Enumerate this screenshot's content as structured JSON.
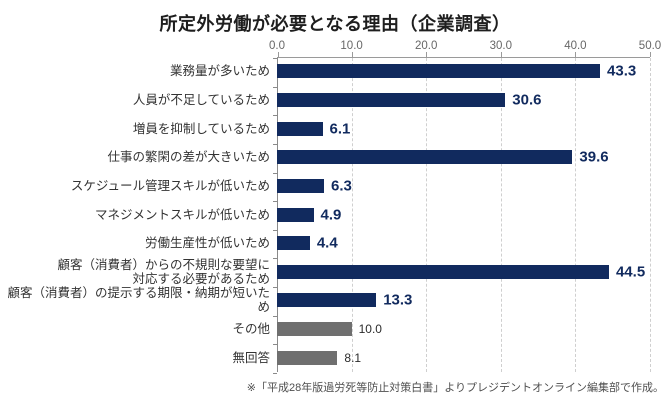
{
  "title": "所定外労働が必要となる理由（企業調査）",
  "source_note": "※「平成28年版過労死等防止対策白書」よりプレジデントオンライン編集部で作成。",
  "palette": {
    "bar_navy": "#112a5e",
    "bar_gray": "#6f6f6f",
    "axis_line": "#9a9a9a",
    "gridline": "#cfcfcf",
    "tick_label": "#676767",
    "category_label": "#333333",
    "value_label_navy": "#112a5e",
    "value_label_gray": "#2b2b2b"
  },
  "chart_data": {
    "type": "bar",
    "orientation": "horizontal",
    "title": "所定外労働が必要となる理由（企業調査）",
    "xlabel": "",
    "ylabel": "",
    "xlim": [
      0,
      50
    ],
    "x_ticks": [
      0,
      10,
      20,
      30,
      40,
      50
    ],
    "x_tick_labels": [
      "0.0",
      "10.0",
      "20.0",
      "30.0",
      "40.0",
      "50.0"
    ],
    "grid": "vertical-dashed",
    "axis_position": "top",
    "legend": "none",
    "categories": [
      "業務量が多いため",
      "人員が不足しているため",
      "増員を抑制しているため",
      "仕事の繁閑の差が大きいため",
      "スケジュール管理スキルが低いため",
      "マネジメントスキルが低いため",
      "労働生産性が低いため",
      "顧客（消費者）からの不規則な要望に\n対応する必要があるため",
      "顧客（消費者）の提示する期限・納期が短いため",
      "その他",
      "無回答"
    ],
    "values": [
      43.3,
      30.6,
      6.1,
      39.6,
      6.3,
      4.9,
      4.4,
      44.5,
      13.3,
      10.0,
      8.1
    ],
    "value_labels": [
      "43.3",
      "30.6",
      "6.1",
      "39.6",
      "6.3",
      "4.9",
      "4.4",
      "44.5",
      "13.3",
      "10.0",
      "8.1"
    ],
    "bar_color_keys": [
      "navy",
      "navy",
      "navy",
      "navy",
      "navy",
      "navy",
      "navy",
      "navy",
      "navy",
      "gray",
      "gray"
    ]
  }
}
